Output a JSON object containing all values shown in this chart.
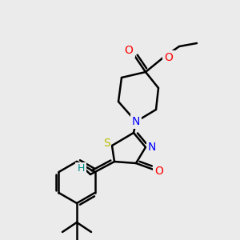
{
  "background_color": "#ebebeb",
  "atom_colors": {
    "C": "#000000",
    "N": "#0000FF",
    "O": "#FF0000",
    "S": "#BBBB00",
    "H": "#008B8B"
  },
  "bond_lw": 1.8,
  "font_size": 10,
  "fig_size": [
    3.0,
    3.0
  ],
  "dpi": 100
}
